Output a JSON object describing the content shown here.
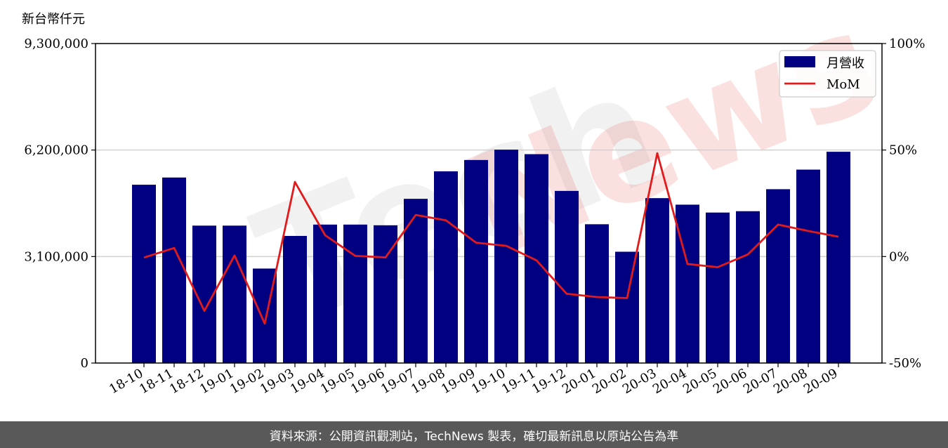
{
  "chart_data": {
    "type": "bar",
    "unit_label": "新台幣仟元",
    "categories": [
      "18-10",
      "18-11",
      "18-12",
      "19-01",
      "19-02",
      "19-03",
      "19-04",
      "19-05",
      "19-06",
      "19-07",
      "19-08",
      "19-09",
      "19-10",
      "19-11",
      "19-12",
      "20-01",
      "20-02",
      "20-03",
      "20-04",
      "20-05",
      "20-06",
      "20-07",
      "20-08",
      "20-09"
    ],
    "series": [
      {
        "name": "月營收",
        "type": "bar",
        "axis": "left",
        "color": "#000080",
        "values": [
          5190000,
          5400000,
          4000000,
          4000000,
          2750000,
          3700000,
          4030000,
          4030000,
          4010000,
          4780000,
          5580000,
          5910000,
          6210000,
          6080000,
          5010000,
          4040000,
          3240000,
          4800000,
          4610000,
          4380000,
          4420000,
          5060000,
          5630000,
          6150000
        ]
      },
      {
        "name": "MoM",
        "type": "line",
        "axis": "right",
        "color": "#e31a1c",
        "values": [
          -0.5,
          4,
          -25.5,
          0.5,
          -31.5,
          35,
          10,
          0.3,
          -0.4,
          19.5,
          17,
          6.5,
          5,
          -1.8,
          -17.5,
          -19,
          -19.5,
          48.5,
          -3.5,
          -5,
          1,
          15,
          12,
          9.3
        ]
      }
    ],
    "y_left": {
      "ticks": [
        "0",
        "3,100,000",
        "6,200,000",
        "9,300,000"
      ],
      "min": 0,
      "max": 9300000
    },
    "y_right": {
      "ticks": [
        "-50%",
        "0%",
        "50%",
        "100%"
      ],
      "min": -50,
      "max": 100
    },
    "grid": "horizontal",
    "legend_position": "top-right",
    "watermark": "TechNews"
  },
  "footer": {
    "source_text": "資料來源：公開資訊觀測站，TechNews 製表，確切最新訊息以原站公告為準"
  }
}
